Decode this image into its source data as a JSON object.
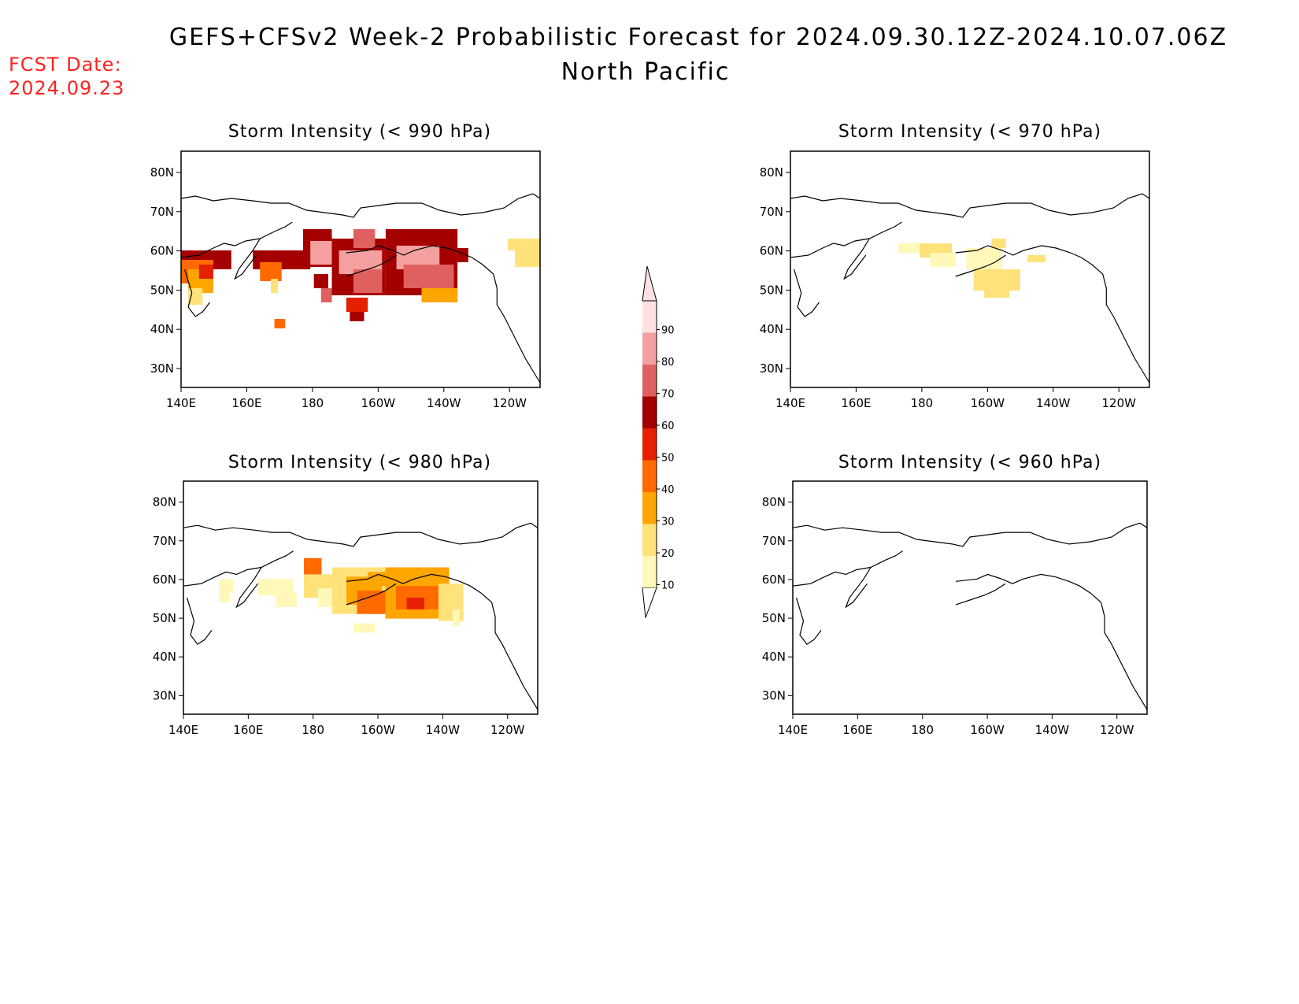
{
  "header": {
    "title": "GEFS+CFSv2 Week-2 Probabilistic Forecast for 2024.09.30.12Z-2024.10.07.06Z",
    "region": "North Pacific",
    "fcst_label": "FCST Date:",
    "fcst_date": "2024.09.23"
  },
  "panels": [
    {
      "title": "Storm Intensity (< 990 hPa)"
    },
    {
      "title": "Storm Intensity (< 970 hPa)"
    },
    {
      "title": "Storm Intensity (< 980 hPa)"
    },
    {
      "title": "Storm Intensity (< 960 hPa)"
    }
  ],
  "axes": {
    "lat_ticks": [
      "80N",
      "70N",
      "60N",
      "50N",
      "40N",
      "30N"
    ],
    "lon_ticks": [
      "140E",
      "160E",
      "180",
      "160W",
      "140W",
      "120W"
    ]
  },
  "colorbar": {
    "levels": [
      "10",
      "20",
      "30",
      "40",
      "50",
      "60",
      "70",
      "80",
      "90"
    ],
    "colors": [
      "#fff8b8",
      "#ffe27a",
      "#ffa500",
      "#ff6a00",
      "#e52000",
      "#a50000",
      "#e06060",
      "#f4a0a0",
      "#fde0e0"
    ]
  }
}
